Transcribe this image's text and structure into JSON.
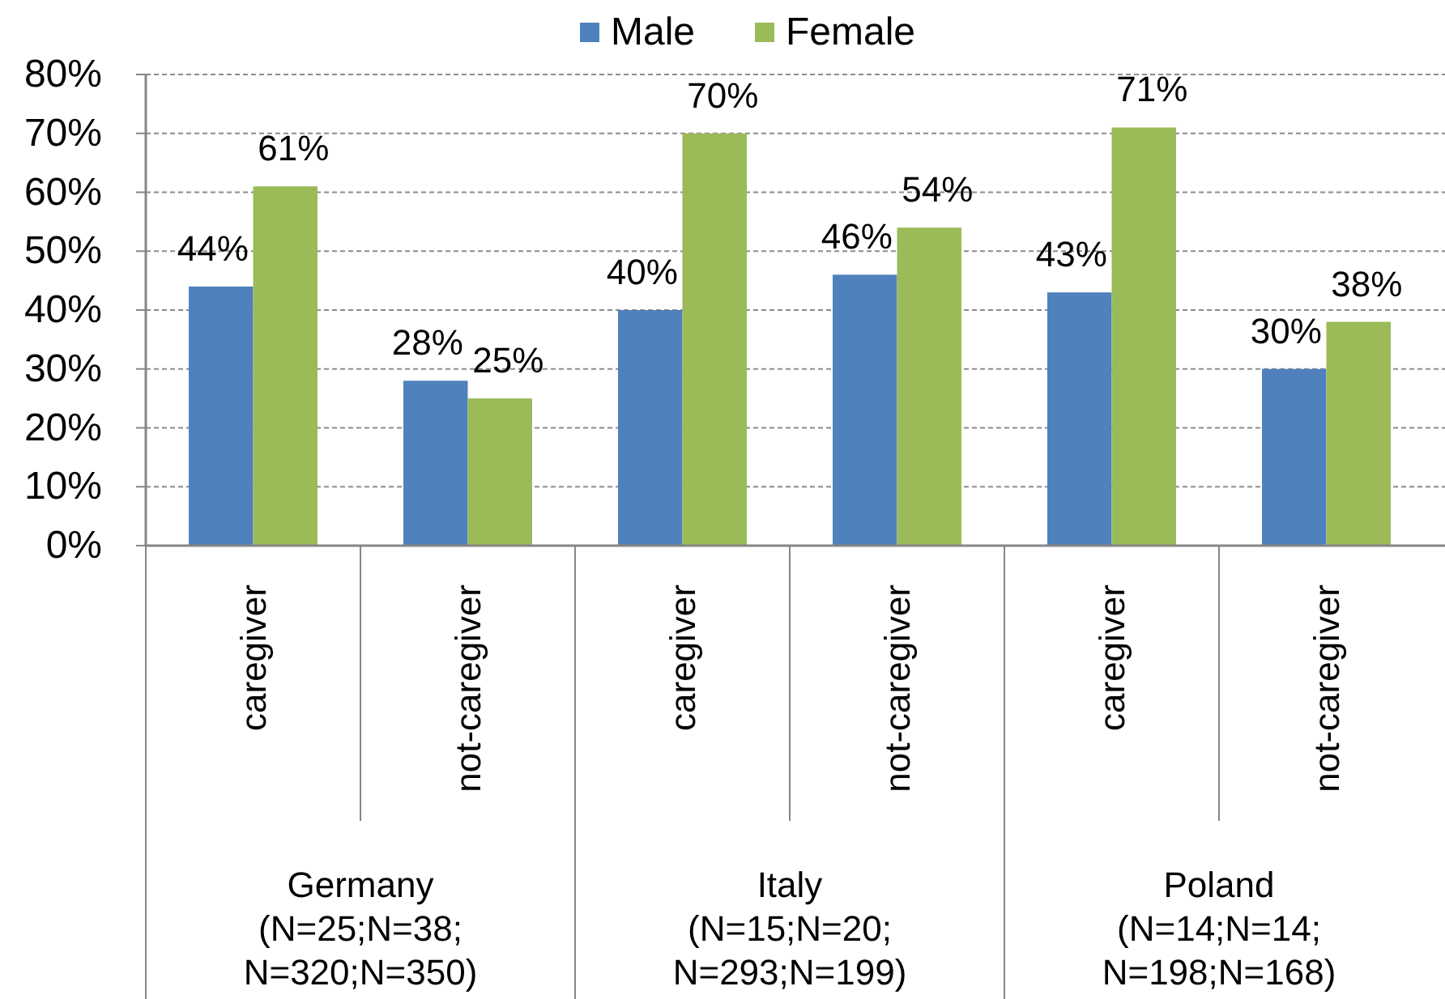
{
  "chart_data": {
    "type": "bar",
    "categories": [
      "caregiver",
      "not-caregiver",
      "caregiver",
      "not-caregiver",
      "caregiver",
      "not-caregiver"
    ],
    "series": [
      {
        "name": "Male",
        "color": "#4f81bd",
        "values": [
          44,
          28,
          40,
          46,
          43,
          30
        ],
        "value_labels": [
          "44%",
          "28%",
          "40%",
          "46%",
          "43%",
          "30%"
        ]
      },
      {
        "name": "Female",
        "color": "#9bbb59",
        "values": [
          61,
          25,
          70,
          54,
          71,
          38
        ],
        "value_labels": [
          "61%",
          "25%",
          "70%",
          "54%",
          "71%",
          "38%"
        ]
      }
    ],
    "ylim": [
      0,
      80
    ],
    "yticks": [
      {
        "value": 0,
        "label": "0%"
      },
      {
        "value": 10,
        "label": "10%"
      },
      {
        "value": 20,
        "label": "20%"
      },
      {
        "value": 30,
        "label": "30%"
      },
      {
        "value": 40,
        "label": "40%"
      },
      {
        "value": 50,
        "label": "50%"
      },
      {
        "value": 60,
        "label": "60%"
      },
      {
        "value": 70,
        "label": "70%"
      },
      {
        "value": 80,
        "label": "80%"
      }
    ],
    "grid": "y",
    "legend": "top",
    "annotations": [
      "Germany\n(N=25;N=38;\nN=320;N=350)",
      "Italy\n(N=15;N=20;\nN=293;N=199)",
      "Poland\n(N=14;N=14;\nN=198;N=168)"
    ]
  }
}
